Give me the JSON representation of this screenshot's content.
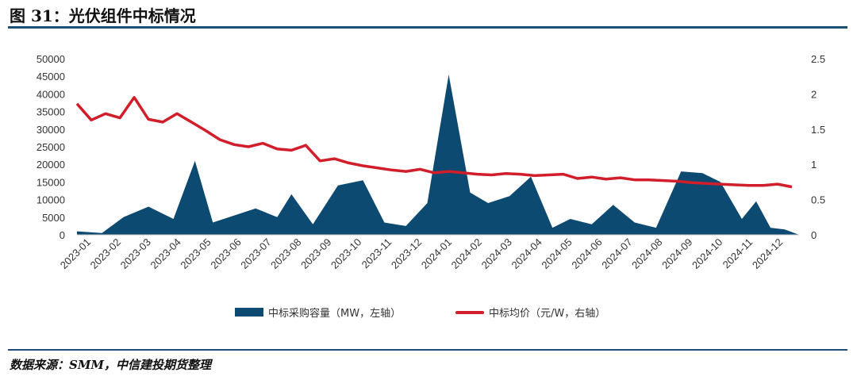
{
  "header": {
    "title": "图 31：光伏组件中标情况"
  },
  "footer": {
    "source": "数据来源：SMM，中信建投期货整理"
  },
  "colors": {
    "area": "#0c4a72",
    "line": "#d11e2a",
    "rule": "#1f4e79"
  },
  "chart_data": {
    "type": "area+line",
    "title": "",
    "xlabel": "",
    "ylabel_left": "",
    "ylabel_right": "",
    "ylim_left": [
      0,
      50000
    ],
    "ylim_right": [
      0,
      2.5
    ],
    "yticks_left": [
      "0",
      "5000",
      "10000",
      "15000",
      "20000",
      "25000",
      "30000",
      "35000",
      "40000",
      "45000",
      "50000"
    ],
    "yticks_right": [
      "0",
      "0.5",
      "1",
      "1.5",
      "2",
      "2.5"
    ],
    "x_tick_labels": [
      "2023-01",
      "2023-02",
      "2023-03",
      "2023-04",
      "2023-05",
      "2023-06",
      "2023-07",
      "2023-08",
      "2023-09",
      "2023-10",
      "2023-11",
      "2023-12",
      "2024-01",
      "2024-02",
      "2024-03",
      "2024-04",
      "2024-05",
      "2024-06",
      "2024-07",
      "2024-08",
      "2024-09",
      "2024-10",
      "2024-11",
      "2024-12"
    ],
    "grid": false,
    "legend_position": "bottom",
    "series": [
      {
        "name": "中标采购容量（MW，左轴）",
        "axis": "left",
        "kind": "area",
        "x": [
          2023.0,
          2023.07,
          2023.13,
          2023.2,
          2023.27,
          2023.33,
          2023.38,
          2023.44,
          2023.5,
          2023.56,
          2023.6,
          2023.66,
          2023.73,
          2023.8,
          2023.86,
          2023.92,
          2023.98,
          2024.04,
          2024.1,
          2024.15,
          2024.21,
          2024.27,
          2024.33,
          2024.38,
          2024.44,
          2024.5,
          2024.56,
          2024.62,
          2024.69,
          2024.75,
          2024.8,
          2024.86,
          2024.9,
          2024.94,
          2024.98,
          2025.02
        ],
        "values": [
          1000,
          500,
          5000,
          8000,
          4500,
          21000,
          3500,
          5500,
          7500,
          5000,
          11500,
          3000,
          14000,
          15500,
          3500,
          2500,
          9000,
          45500,
          12000,
          9000,
          11000,
          16500,
          2000,
          4500,
          3000,
          8500,
          3500,
          2000,
          18000,
          17500,
          15000,
          4500,
          9500,
          2000,
          1500,
          0
        ]
      },
      {
        "name": "中标均价（元/W，右轴）",
        "axis": "right",
        "kind": "line",
        "x": [
          2023.0,
          2023.04,
          2023.08,
          2023.12,
          2023.16,
          2023.2,
          2023.24,
          2023.28,
          2023.32,
          2023.36,
          2023.4,
          2023.44,
          2023.48,
          2023.52,
          2023.56,
          2023.6,
          2023.64,
          2023.68,
          2023.72,
          2023.76,
          2023.8,
          2023.84,
          2023.88,
          2023.92,
          2023.96,
          2024.0,
          2024.04,
          2024.08,
          2024.12,
          2024.16,
          2024.2,
          2024.24,
          2024.28,
          2024.32,
          2024.36,
          2024.4,
          2024.44,
          2024.48,
          2024.52,
          2024.56,
          2024.6,
          2024.64,
          2024.68,
          2024.72,
          2024.76,
          2024.8,
          2024.84,
          2024.88,
          2024.92,
          2024.96,
          2025.0
        ],
        "values": [
          1.86,
          1.63,
          1.72,
          1.66,
          1.95,
          1.64,
          1.6,
          1.72,
          1.6,
          1.48,
          1.35,
          1.28,
          1.25,
          1.3,
          1.22,
          1.2,
          1.27,
          1.05,
          1.08,
          1.02,
          0.98,
          0.95,
          0.92,
          0.9,
          0.93,
          0.88,
          0.9,
          0.88,
          0.86,
          0.85,
          0.87,
          0.86,
          0.84,
          0.85,
          0.86,
          0.8,
          0.82,
          0.79,
          0.81,
          0.78,
          0.78,
          0.77,
          0.76,
          0.74,
          0.73,
          0.72,
          0.71,
          0.7,
          0.7,
          0.72,
          0.68
        ]
      }
    ]
  }
}
